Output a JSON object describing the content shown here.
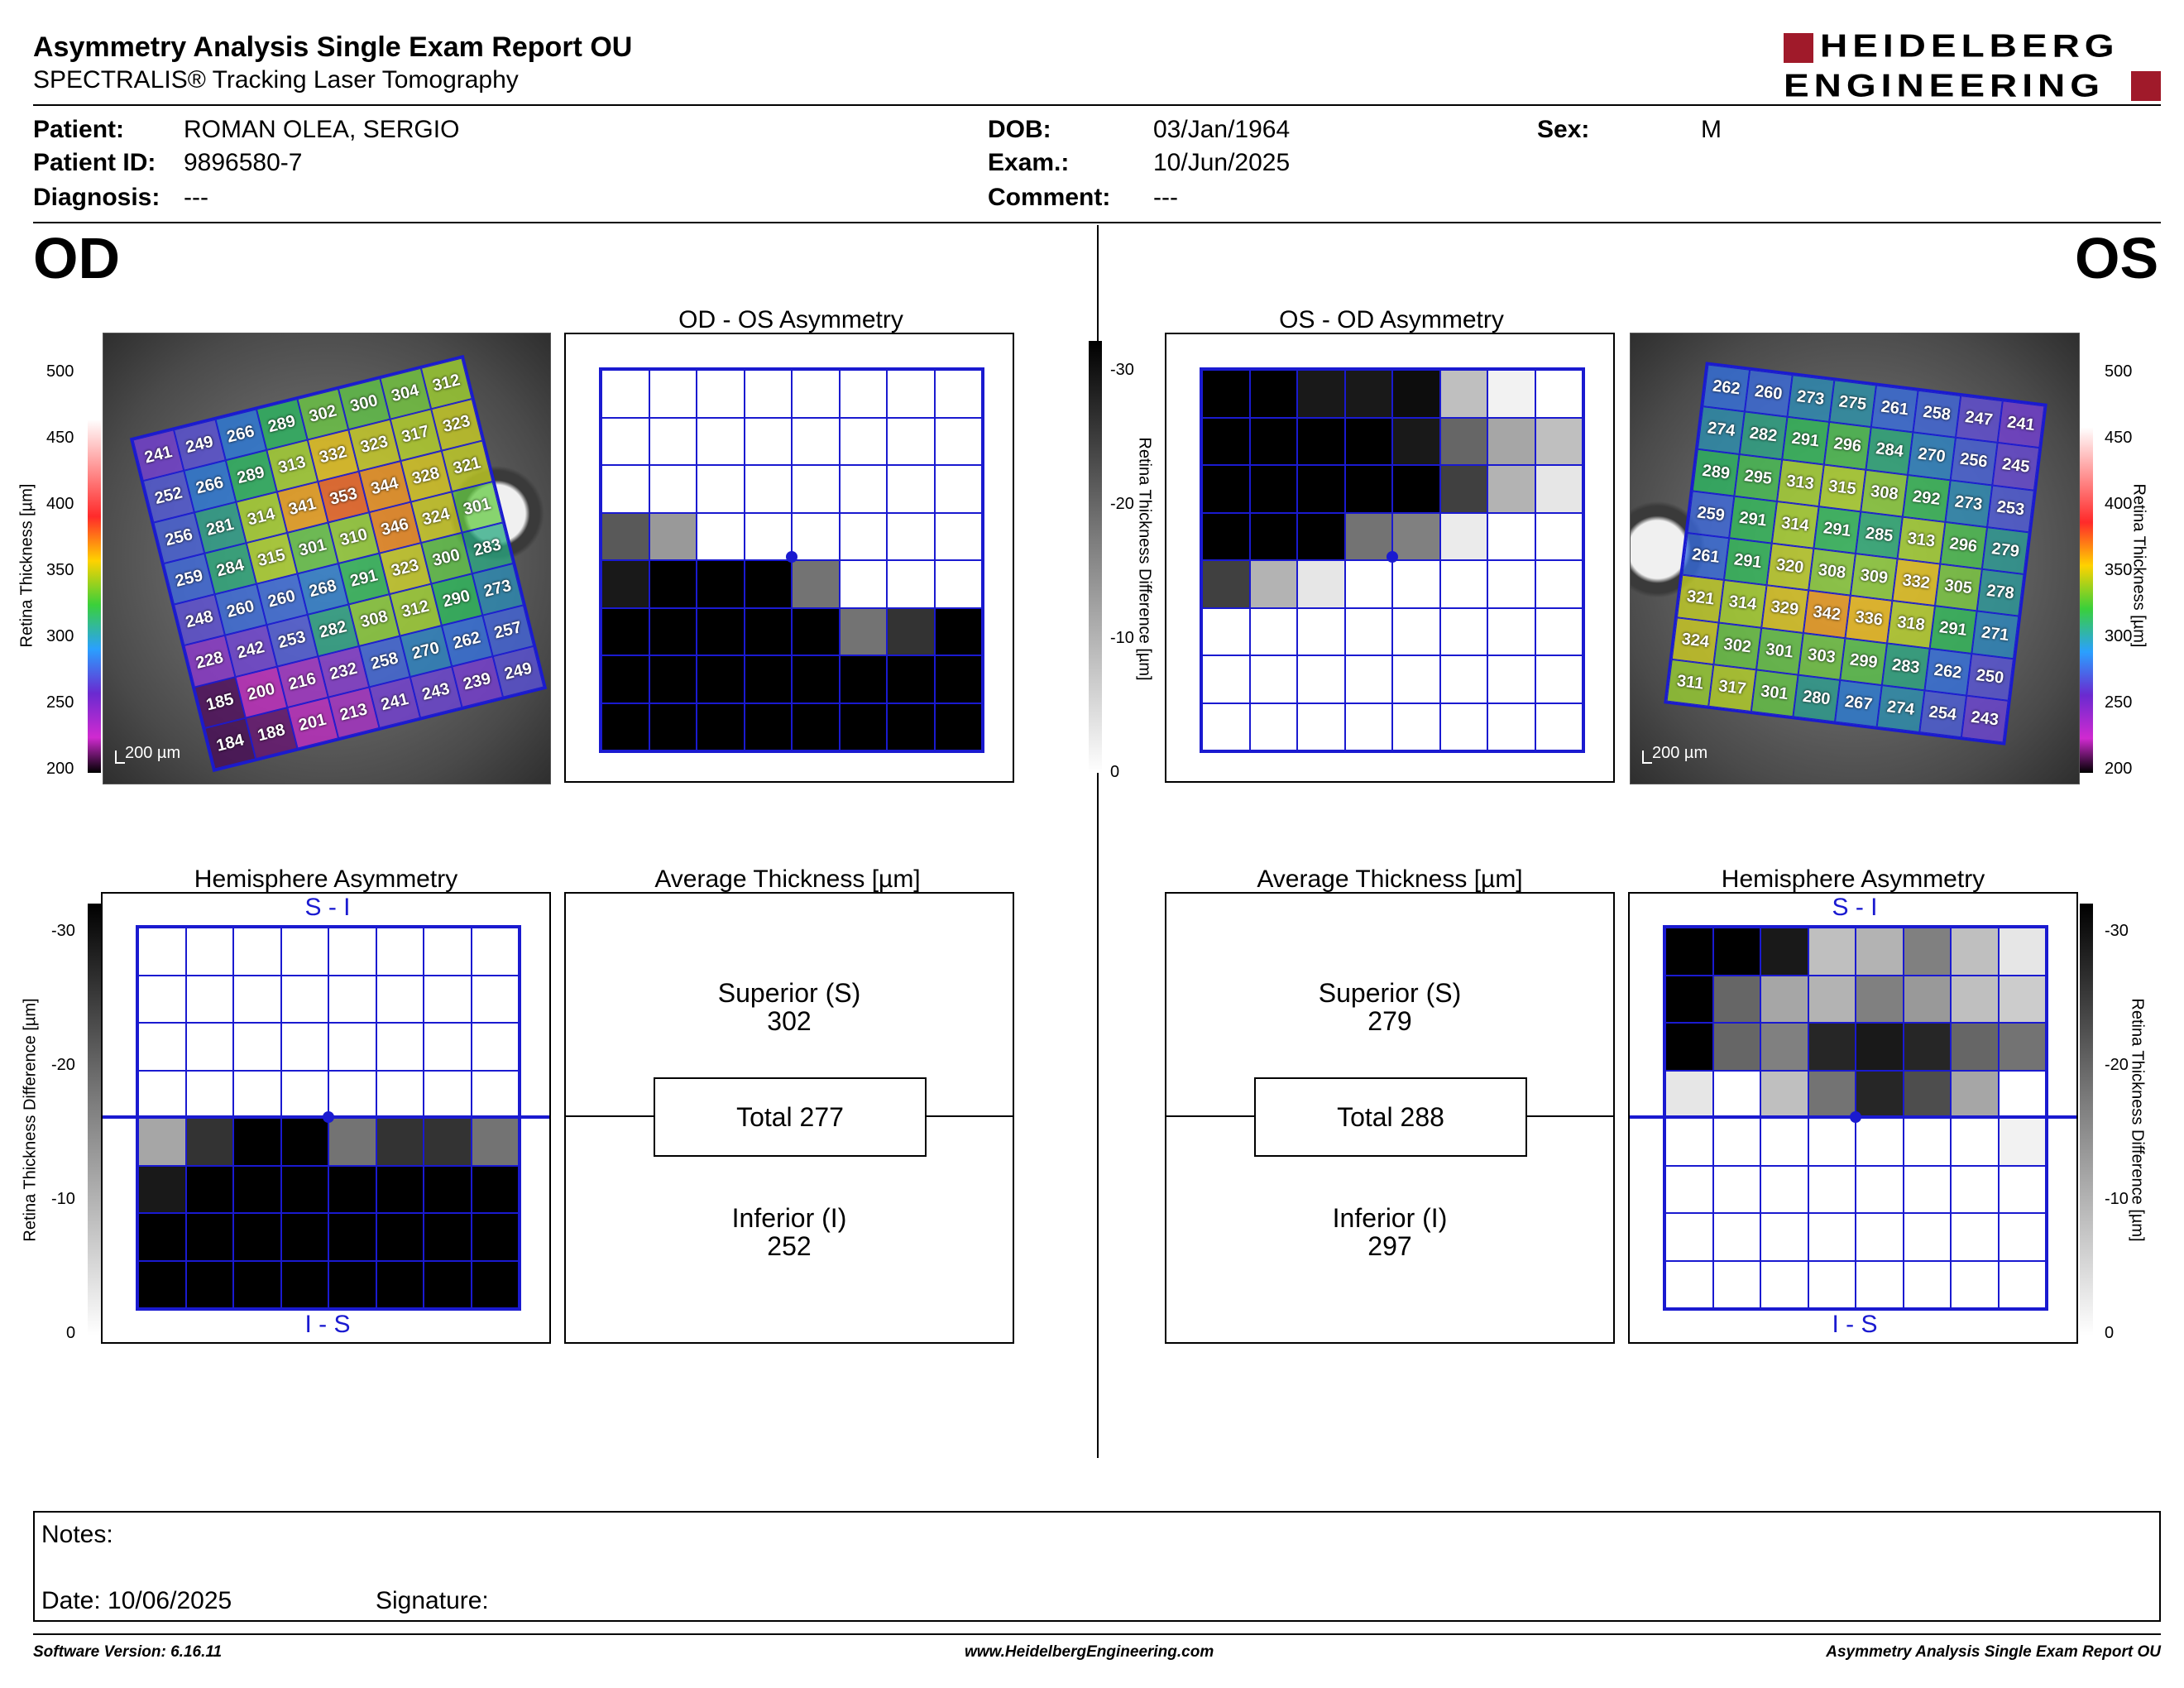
{
  "header": {
    "title": "Asymmetry Analysis Single Exam Report OU",
    "subtitle": "SPECTRALIS® Tracking Laser Tomography",
    "logo_line1": "HEIDELBERG",
    "logo_line2": "ENGINEERING"
  },
  "patient": {
    "patient_label": "Patient:",
    "patient_value": "ROMAN OLEA, SERGIO",
    "id_label": "Patient ID:",
    "id_value": "9896580-7",
    "diagnosis_label": "Diagnosis:",
    "diagnosis_value": "---",
    "dob_label": "DOB:",
    "dob_value": "03/Jan/1964",
    "exam_label": "Exam.:",
    "exam_value": "10/Jun/2025",
    "comment_label": "Comment:",
    "comment_value": "---",
    "sex_label": "Sex:",
    "sex_value": "M"
  },
  "od": {
    "eye_label": "OD",
    "asym_title": "OD - OS Asymmetry",
    "hemi_title": "Hemisphere Asymmetry",
    "avg_title": "Average Thickness [µm]",
    "scale_label": "200 µm",
    "hemi_top": "S - I",
    "hemi_bottom": "I - S",
    "superior_label": "Superior (S)",
    "superior_value": "302",
    "total_label": "Total 277",
    "inferior_label": "Inferior (I)",
    "inferior_value": "252",
    "thickness_rows": [
      [
        "241",
        "249",
        "266",
        "289",
        "302",
        "300",
        "304",
        "312"
      ],
      [
        "252",
        "266",
        "289",
        "313",
        "332",
        "323",
        "317",
        "323"
      ],
      [
        "256",
        "281",
        "314",
        "341",
        "353",
        "344",
        "328",
        "321"
      ],
      [
        "259",
        "284",
        "315",
        "301",
        "310",
        "346",
        "324",
        "301"
      ],
      [
        "248",
        "260",
        "260",
        "268",
        "291",
        "323",
        "300",
        "283"
      ],
      [
        "228",
        "242",
        "253",
        "282",
        "308",
        "312",
        "290",
        "273"
      ],
      [
        "185",
        "200",
        "216",
        "232",
        "258",
        "270",
        "262",
        "257"
      ],
      [
        "184",
        "188",
        "201",
        "213",
        "241",
        "243",
        "239",
        "249"
      ]
    ],
    "asym_shades": [
      [
        0,
        0,
        0,
        0,
        0,
        0,
        0,
        0
      ],
      [
        0,
        0,
        0,
        0,
        0,
        0,
        0,
        0
      ],
      [
        0,
        0,
        0,
        0,
        0,
        0,
        0,
        0
      ],
      [
        0.65,
        0.4,
        0,
        0,
        0,
        0,
        0,
        0
      ],
      [
        0.9,
        1,
        1,
        1,
        0.55,
        0,
        0,
        0
      ],
      [
        1,
        1,
        1,
        1,
        1,
        0.55,
        0.8,
        1
      ],
      [
        1,
        1,
        1,
        1,
        1,
        1,
        1,
        1
      ],
      [
        1,
        1,
        1,
        1,
        1,
        1,
        1,
        1
      ]
    ],
    "hemi_shades": [
      [
        0,
        0,
        0,
        0,
        0,
        0,
        0,
        0
      ],
      [
        0,
        0,
        0,
        0,
        0,
        0,
        0,
        0
      ],
      [
        0,
        0,
        0,
        0,
        0,
        0,
        0,
        0
      ],
      [
        0,
        0,
        0,
        0,
        0,
        0,
        0,
        0
      ],
      [
        0.35,
        0.8,
        1,
        1,
        0.55,
        0.8,
        0.8,
        0.55
      ],
      [
        0.9,
        1,
        1,
        1,
        1,
        1,
        1,
        1
      ],
      [
        1,
        1,
        1,
        1,
        1,
        1,
        1,
        1
      ],
      [
        1,
        1,
        1,
        1,
        1,
        1,
        1,
        1
      ]
    ]
  },
  "os": {
    "eye_label": "OS",
    "asym_title": "OS - OD Asymmetry",
    "hemi_title": "Hemisphere Asymmetry",
    "avg_title": "Average Thickness [µm]",
    "scale_label": "200 µm",
    "hemi_top": "S - I",
    "hemi_bottom": "I - S",
    "superior_label": "Superior (S)",
    "superior_value": "279",
    "total_label": "Total 288",
    "inferior_label": "Inferior (I)",
    "inferior_value": "297",
    "thickness_rows": [
      [
        "262",
        "260",
        "273",
        "275",
        "261",
        "258",
        "247",
        "241"
      ],
      [
        "274",
        "282",
        "291",
        "296",
        "284",
        "270",
        "256",
        "245"
      ],
      [
        "289",
        "295",
        "313",
        "315",
        "308",
        "292",
        "273",
        "253"
      ],
      [
        "259",
        "291",
        "314",
        "291",
        "285",
        "313",
        "296",
        "279"
      ],
      [
        "261",
        "291",
        "320",
        "308",
        "309",
        "332",
        "305",
        "278"
      ],
      [
        "321",
        "314",
        "329",
        "342",
        "336",
        "318",
        "291",
        "271"
      ],
      [
        "324",
        "302",
        "301",
        "303",
        "299",
        "283",
        "262",
        "250"
      ],
      [
        "311",
        "317",
        "301",
        "280",
        "267",
        "274",
        "254",
        "243"
      ]
    ],
    "asym_shades": [
      [
        1,
        1,
        0.9,
        0.9,
        0.95,
        0.25,
        0.05,
        0
      ],
      [
        1,
        1,
        1,
        1,
        0.9,
        0.6,
        0.35,
        0.25
      ],
      [
        1,
        1,
        1,
        1,
        1,
        0.75,
        0.3,
        0.1
      ],
      [
        1,
        1,
        1,
        0.55,
        0.5,
        0.08,
        0,
        0
      ],
      [
        0.75,
        0.3,
        0.1,
        0,
        0,
        0,
        0,
        0
      ],
      [
        0,
        0,
        0,
        0,
        0,
        0,
        0,
        0
      ],
      [
        0,
        0,
        0,
        0,
        0,
        0,
        0,
        0
      ],
      [
        0,
        0,
        0,
        0,
        0,
        0,
        0,
        0
      ]
    ],
    "hemi_shades": [
      [
        1,
        1,
        0.9,
        0.25,
        0.3,
        0.5,
        0.25,
        0.1
      ],
      [
        1,
        0.6,
        0.35,
        0.3,
        0.5,
        0.4,
        0.25,
        0.2
      ],
      [
        1,
        0.6,
        0.5,
        0.85,
        0.9,
        0.85,
        0.6,
        0.55
      ],
      [
        0.1,
        0,
        0.25,
        0.55,
        0.85,
        0.7,
        0.35,
        0
      ],
      [
        0,
        0,
        0,
        0,
        0,
        0,
        0,
        0.05
      ],
      [
        0,
        0,
        0,
        0,
        0,
        0,
        0,
        0
      ],
      [
        0,
        0,
        0,
        0,
        0,
        0,
        0,
        0
      ],
      [
        0,
        0,
        0,
        0,
        0,
        0,
        0,
        0
      ]
    ]
  },
  "axes": {
    "thickness_ticks": [
      "500",
      "450",
      "400",
      "350",
      "300",
      "250",
      "200"
    ],
    "thickness_label": "Retina  Thickness [µm]",
    "diff_ticks": [
      "-30",
      "-20",
      "-10",
      "0"
    ],
    "diff_label": "Retina Thickness Difference [µm]"
  },
  "notes": {
    "notes_label": "Notes:",
    "date_label": "Date: 10/06/2025",
    "signature_label": "Signature:"
  },
  "footer": {
    "software": "Software Version: 6.16.11",
    "website": "www.HeidelbergEngineering.com",
    "report": "Asymmetry Analysis Single Exam Report OU"
  },
  "colors": {
    "grid_blue": "#1a1ad0",
    "logo_red": "#a01a2a"
  }
}
